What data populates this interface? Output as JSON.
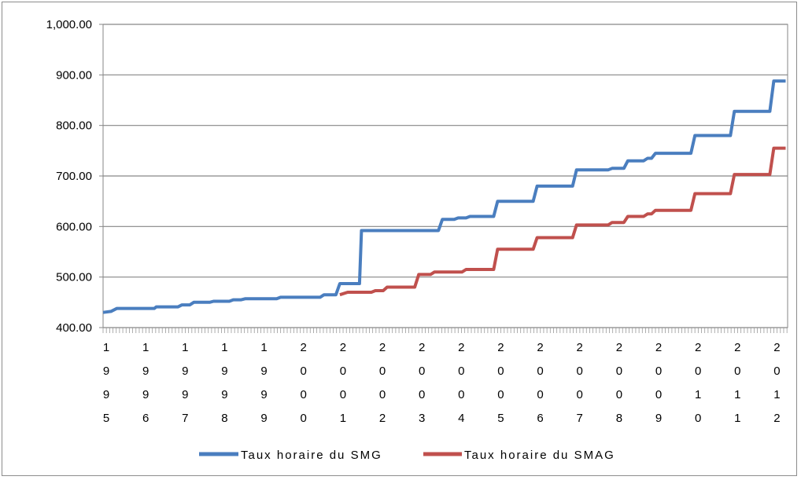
{
  "chart_data": {
    "type": "line",
    "title": "",
    "xlabel": "",
    "ylabel": "",
    "ylim": [
      400,
      1000
    ],
    "yticks": [
      "400.00",
      "500.00",
      "600.00",
      "700.00",
      "800.00",
      "900.00",
      "1,000.00"
    ],
    "ytick_values": [
      400,
      500,
      600,
      700,
      800,
      900,
      1000
    ],
    "xlim": [
      1995,
      2012.35
    ],
    "xticks": [
      {
        "value": 1995,
        "label": "1995"
      },
      {
        "value": 1996,
        "label": "1996"
      },
      {
        "value": 1997,
        "label": "1997"
      },
      {
        "value": 1998,
        "label": "1998"
      },
      {
        "value": 1999,
        "label": "1999"
      },
      {
        "value": 2000,
        "label": "2000"
      },
      {
        "value": 2001,
        "label": "2001"
      },
      {
        "value": 2002,
        "label": "2002"
      },
      {
        "value": 2003,
        "label": "2003"
      },
      {
        "value": 2004,
        "label": "2004"
      },
      {
        "value": 2005,
        "label": "2005"
      },
      {
        "value": 2006,
        "label": "2006"
      },
      {
        "value": 2007,
        "label": "2007"
      },
      {
        "value": 2008,
        "label": "2008"
      },
      {
        "value": 2009,
        "label": "2009"
      },
      {
        "value": 2010,
        "label": "2010"
      },
      {
        "value": 2011,
        "label": "2011"
      },
      {
        "value": 2012,
        "label": "2012"
      }
    ],
    "grid": true,
    "legend_position": "bottom",
    "series": [
      {
        "name": "Taux horaire du SMG",
        "color": "#4a7ebf",
        "points": [
          [
            1995.0,
            430
          ],
          [
            1995.2,
            432
          ],
          [
            1995.35,
            438
          ],
          [
            1996.3,
            438
          ],
          [
            1996.35,
            441
          ],
          [
            1996.9,
            441
          ],
          [
            1997.0,
            445
          ],
          [
            1997.2,
            445
          ],
          [
            1997.3,
            450
          ],
          [
            1997.7,
            450
          ],
          [
            1997.8,
            452
          ],
          [
            1998.2,
            452
          ],
          [
            1998.3,
            455
          ],
          [
            1998.5,
            455
          ],
          [
            1998.6,
            457
          ],
          [
            1999.4,
            457
          ],
          [
            1999.5,
            460
          ],
          [
            2000.5,
            460
          ],
          [
            2000.6,
            465
          ],
          [
            2000.9,
            465
          ],
          [
            2001.0,
            487
          ],
          [
            2001.5,
            487
          ],
          [
            2001.55,
            592
          ],
          [
            2003.5,
            592
          ],
          [
            2003.6,
            614
          ],
          [
            2003.9,
            614
          ],
          [
            2004.0,
            617
          ],
          [
            2004.2,
            617
          ],
          [
            2004.3,
            620
          ],
          [
            2004.9,
            620
          ],
          [
            2005.0,
            650
          ],
          [
            2005.9,
            650
          ],
          [
            2006.0,
            680
          ],
          [
            2006.9,
            680
          ],
          [
            2007.0,
            712
          ],
          [
            2007.8,
            712
          ],
          [
            2007.9,
            715
          ],
          [
            2008.2,
            715
          ],
          [
            2008.3,
            730
          ],
          [
            2008.7,
            730
          ],
          [
            2008.8,
            735
          ],
          [
            2008.9,
            735
          ],
          [
            2009.0,
            745
          ],
          [
            2009.9,
            745
          ],
          [
            2010.0,
            780
          ],
          [
            2010.9,
            780
          ],
          [
            2011.0,
            828
          ],
          [
            2011.9,
            828
          ],
          [
            2012.0,
            888
          ],
          [
            2012.3,
            888
          ]
        ]
      },
      {
        "name": "Taux horaire du SMAG",
        "color": "#c0504d",
        "points": [
          [
            2001.0,
            465
          ],
          [
            2001.2,
            470
          ],
          [
            2001.8,
            470
          ],
          [
            2001.9,
            473
          ],
          [
            2002.1,
            473
          ],
          [
            2002.2,
            480
          ],
          [
            2002.9,
            480
          ],
          [
            2003.0,
            505
          ],
          [
            2003.3,
            505
          ],
          [
            2003.4,
            510
          ],
          [
            2004.1,
            510
          ],
          [
            2004.2,
            515
          ],
          [
            2004.9,
            515
          ],
          [
            2005.0,
            555
          ],
          [
            2005.9,
            555
          ],
          [
            2006.0,
            578
          ],
          [
            2006.9,
            578
          ],
          [
            2007.0,
            603
          ],
          [
            2007.8,
            603
          ],
          [
            2007.9,
            608
          ],
          [
            2008.2,
            608
          ],
          [
            2008.3,
            620
          ],
          [
            2008.7,
            620
          ],
          [
            2008.8,
            625
          ],
          [
            2008.9,
            625
          ],
          [
            2009.0,
            632
          ],
          [
            2009.9,
            632
          ],
          [
            2010.0,
            665
          ],
          [
            2010.9,
            665
          ],
          [
            2011.0,
            703
          ],
          [
            2011.9,
            703
          ],
          [
            2012.0,
            755
          ],
          [
            2012.3,
            755
          ]
        ]
      }
    ]
  }
}
